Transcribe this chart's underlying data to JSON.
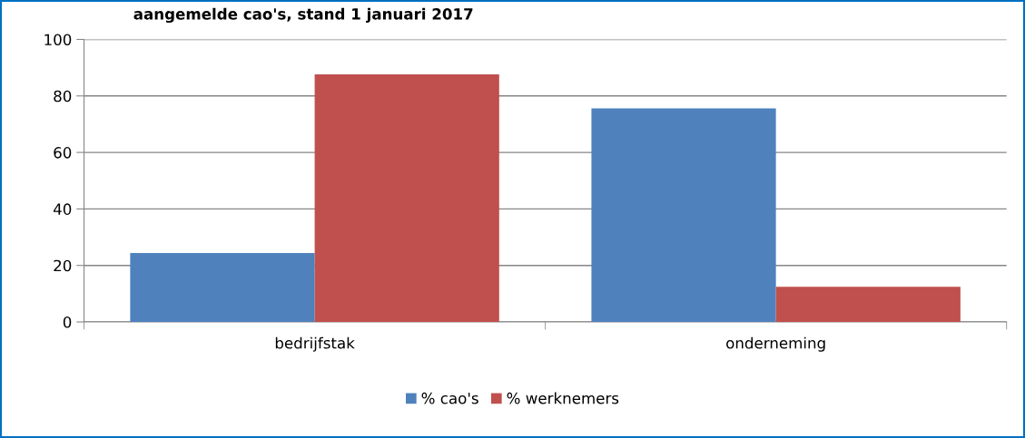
{
  "chart_data": {
    "type": "bar",
    "title": "aangemelde cao's, stand 1 januari 2017",
    "categories": [
      "bedrijfstak",
      "onderneming"
    ],
    "series": [
      {
        "name": "% cao's",
        "color": "#4f81bd",
        "values": [
          24.4,
          75.6
        ]
      },
      {
        "name": "% werknemers",
        "color": "#c0504d",
        "values": [
          87.6,
          12.4
        ]
      }
    ],
    "ylim": [
      0,
      100
    ],
    "yticks": [
      0,
      20,
      40,
      60,
      80,
      100
    ],
    "grid": "y",
    "legend": "bottom"
  }
}
